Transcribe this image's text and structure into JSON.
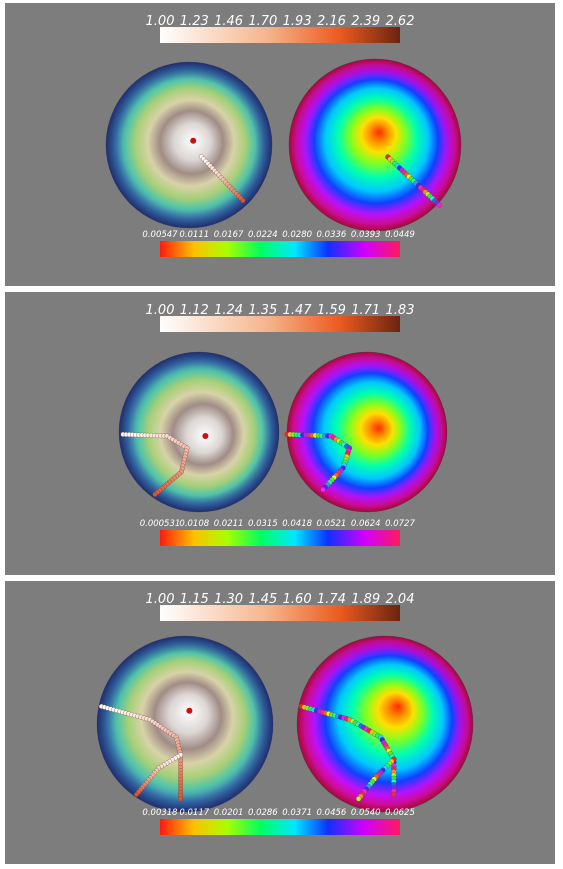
{
  "panels": [
    {
      "top_scale": {
        "labels": [
          "1.00",
          "1.23",
          "1.46",
          "1.70",
          "1.93",
          "2.16",
          "2.39",
          "2.62"
        ]
      },
      "bottom_scale": {
        "labels": [
          "0.00547",
          "0.0111",
          "0.0167",
          "0.0224",
          "0.0280",
          "0.0336",
          "0.0393",
          "0.0449"
        ]
      },
      "paths": {
        "left": [
          [
            [
              0.15,
              0.14
            ],
            [
              0.65,
              0.67
            ]
          ]
        ],
        "right": [
          [
            [
              0.15,
              0.14
            ],
            [
              0.75,
              0.7
            ]
          ]
        ]
      }
    },
    {
      "top_scale": {
        "labels": [
          "1.00",
          "1.12",
          "1.24",
          "1.35",
          "1.47",
          "1.59",
          "1.71",
          "1.83"
        ]
      },
      "bottom_scale": {
        "labels": [
          "0.000531",
          "0.0108",
          "0.0211",
          "0.0315",
          "0.0418",
          "0.0521",
          "0.0624",
          "0.0727"
        ]
      },
      "paths": {
        "left": [
          [
            [
              -0.95,
              0.03
            ],
            [
              -0.4,
              0.05
            ],
            [
              -0.15,
              0.2
            ],
            [
              -0.22,
              0.5
            ],
            [
              -0.55,
              0.78
            ]
          ]
        ],
        "right": [
          [
            [
              -1.0,
              0.03
            ],
            [
              -0.45,
              0.05
            ],
            [
              -0.22,
              0.2
            ],
            [
              -0.3,
              0.45
            ],
            [
              -0.55,
              0.72
            ]
          ]
        ]
      }
    },
    {
      "top_scale": {
        "labels": [
          "1.00",
          "1.15",
          "1.30",
          "1.45",
          "1.60",
          "1.74",
          "1.89",
          "2.04"
        ]
      },
      "bottom_scale": {
        "labels": [
          "0.00318",
          "0.0117",
          "0.0201",
          "0.0286",
          "0.0371",
          "0.0456",
          "0.0540",
          "0.0625"
        ]
      },
      "paths": {
        "left": [
          [
            [
              -0.95,
              -0.2
            ],
            [
              -0.4,
              -0.05
            ],
            [
              -0.1,
              0.15
            ],
            [
              -0.05,
              0.35
            ],
            [
              -0.05,
              0.85
            ]
          ],
          [
            [
              -0.05,
              0.35
            ],
            [
              -0.3,
              0.5
            ],
            [
              -0.55,
              0.8
            ]
          ]
        ],
        "right": [
          [
            [
              -0.95,
              -0.2
            ],
            [
              -0.4,
              -0.05
            ],
            [
              -0.05,
              0.15
            ],
            [
              0.1,
              0.4
            ],
            [
              0.1,
              0.8
            ]
          ],
          [
            [
              0.1,
              0.4
            ],
            [
              -0.1,
              0.6
            ],
            [
              -0.3,
              0.85
            ]
          ]
        ]
      }
    }
  ]
}
